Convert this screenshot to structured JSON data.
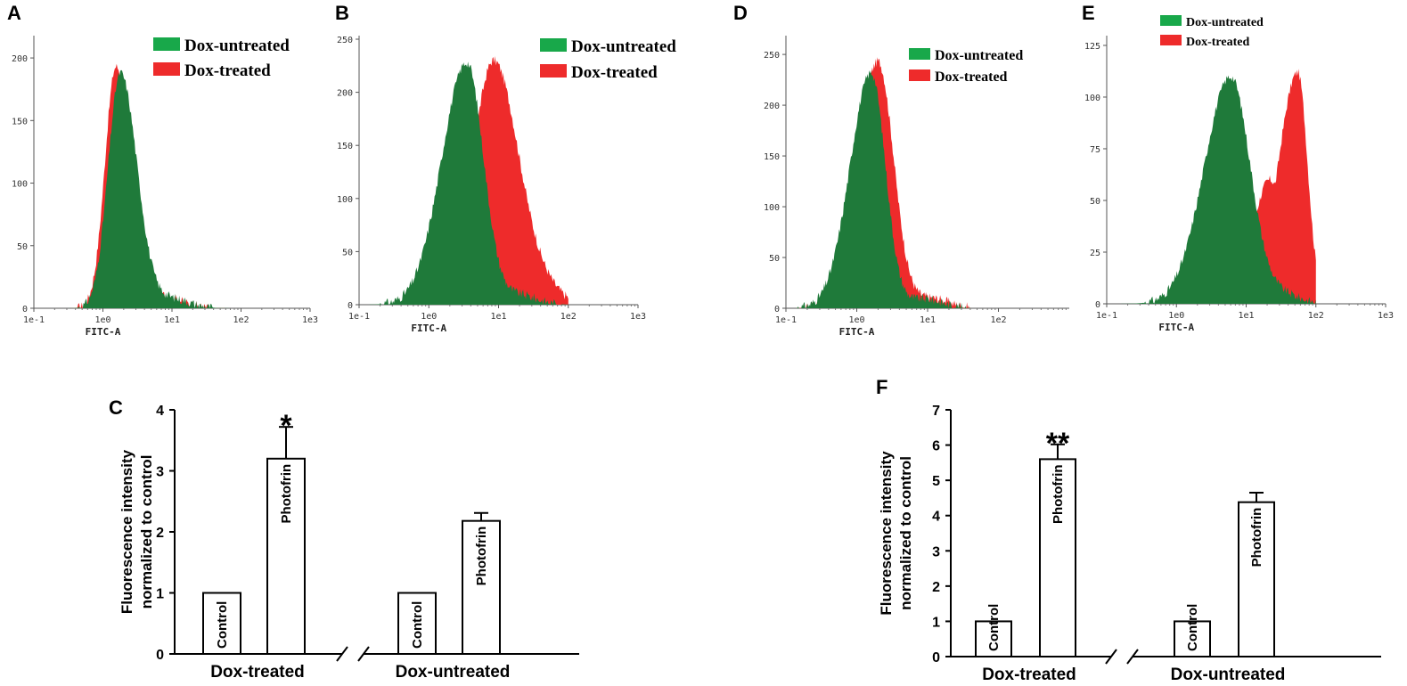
{
  "colors": {
    "untreated": "#1f7a3a",
    "treated": "#ee2b2b",
    "legend_untreated": "#18a84a",
    "legend_treated": "#ee2b2b"
  },
  "chart_data": [
    {
      "panel": "A",
      "type": "area",
      "xlabel": "FITC-A",
      "x_scale": "log",
      "xticks": [
        "1e-1",
        "1e0",
        "1e1",
        "1e2",
        "1e3"
      ],
      "yticks": [
        "0",
        "50",
        "100",
        "150",
        "200"
      ],
      "ylim": [
        0,
        215
      ],
      "legend": [
        "Dox-untreated",
        "Dox-treated"
      ],
      "series": [
        {
          "name": "Dox-untreated",
          "peak_x": 1.8,
          "peak_y": 188,
          "spread_left": 0.18,
          "spread_right": 0.24
        },
        {
          "name": "Dox-treated",
          "peak_x": 1.55,
          "peak_y": 193,
          "spread_left": 0.16,
          "spread_right": 0.24
        }
      ]
    },
    {
      "panel": "B",
      "type": "area",
      "xlabel": "FITC-A",
      "x_scale": "log",
      "xticks": [
        "1e-1",
        "1e0",
        "1e1",
        "1e2",
        "1e3"
      ],
      "yticks": [
        "0",
        "50",
        "100",
        "150",
        "200",
        "250"
      ],
      "ylim": [
        0,
        250
      ],
      "legend": [
        "Dox-untreated",
        "Dox-treated"
      ],
      "series": [
        {
          "name": "Dox-untreated",
          "peak_x": 3.5,
          "peak_y": 228,
          "spread_left": 0.36,
          "spread_right": 0.24
        },
        {
          "name": "Dox-treated",
          "peak_x": 8.5,
          "peak_y": 230,
          "spread_left": 0.3,
          "spread_right": 0.36
        }
      ]
    },
    {
      "panel": "D",
      "type": "area",
      "xlabel": "FITC-A",
      "x_scale": "log",
      "xticks": [
        "1e-1",
        "1e0",
        "1e1",
        "1e2"
      ],
      "yticks": [
        "0",
        "50",
        "100",
        "150",
        "200",
        "250"
      ],
      "ylim": [
        0,
        265
      ],
      "legend": [
        "Dox-untreated",
        "Dox-treated"
      ],
      "series": [
        {
          "name": "Dox-untreated",
          "peak_x": 1.6,
          "peak_y": 232,
          "spread_left": 0.3,
          "spread_right": 0.2
        },
        {
          "name": "Dox-treated",
          "peak_x": 2.0,
          "peak_y": 243,
          "spread_left": 0.3,
          "spread_right": 0.22
        }
      ]
    },
    {
      "panel": "E",
      "type": "area",
      "xlabel": "FITC-A",
      "x_scale": "log",
      "xticks": [
        "1e-1",
        "1e0",
        "1e1",
        "1e2",
        "1e3"
      ],
      "yticks": [
        "0",
        "25",
        "50",
        "75",
        "100",
        "125"
      ],
      "ylim": [
        0,
        128
      ],
      "legend": [
        "Dox-untreated",
        "Dox-treated"
      ],
      "series": [
        {
          "name": "Dox-untreated",
          "peak_x": 6,
          "peak_y": 110,
          "spread_left": 0.38,
          "spread_right": 0.28
        },
        {
          "name": "Dox-treated",
          "peak_x": 55,
          "peak_y": 112,
          "spread_left": 0.28,
          "spread_right": 0.14,
          "shoulder_x": 22,
          "shoulder_y": 60
        }
      ]
    },
    {
      "panel": "C",
      "type": "bar",
      "ylabel": "Fluorescence intensity normalized to control",
      "yticks": [
        "0",
        "1",
        "2",
        "3",
        "4"
      ],
      "ylim": [
        0,
        4
      ],
      "groups": [
        {
          "name": "Dox-treated",
          "bars": [
            {
              "label": "Control",
              "value": 1.0,
              "error": 0
            },
            {
              "label": "Photofrin",
              "value": 3.2,
              "error": 0.52,
              "sig": "*"
            }
          ]
        },
        {
          "name": "Dox-untreated",
          "bars": [
            {
              "label": "Control",
              "value": 1.0,
              "error": 0
            },
            {
              "label": "Photofrin",
              "value": 2.18,
              "error": 0.13
            }
          ]
        }
      ]
    },
    {
      "panel": "F",
      "type": "bar",
      "ylabel": "Fluorescence intensity normalized to control",
      "yticks": [
        "0",
        "1",
        "2",
        "3",
        "4",
        "5",
        "6",
        "7"
      ],
      "ylim": [
        0,
        7
      ],
      "groups": [
        {
          "name": "Dox-treated",
          "bars": [
            {
              "label": "Control",
              "value": 1.0,
              "error": 0
            },
            {
              "label": "Photofrin",
              "value": 5.6,
              "error": 0.42,
              "sig": "**"
            }
          ]
        },
        {
          "name": "Dox-untreated",
          "bars": [
            {
              "label": "Control",
              "value": 1.0,
              "error": 0
            },
            {
              "label": "Photofrin",
              "value": 4.38,
              "error": 0.27
            }
          ]
        }
      ]
    }
  ]
}
